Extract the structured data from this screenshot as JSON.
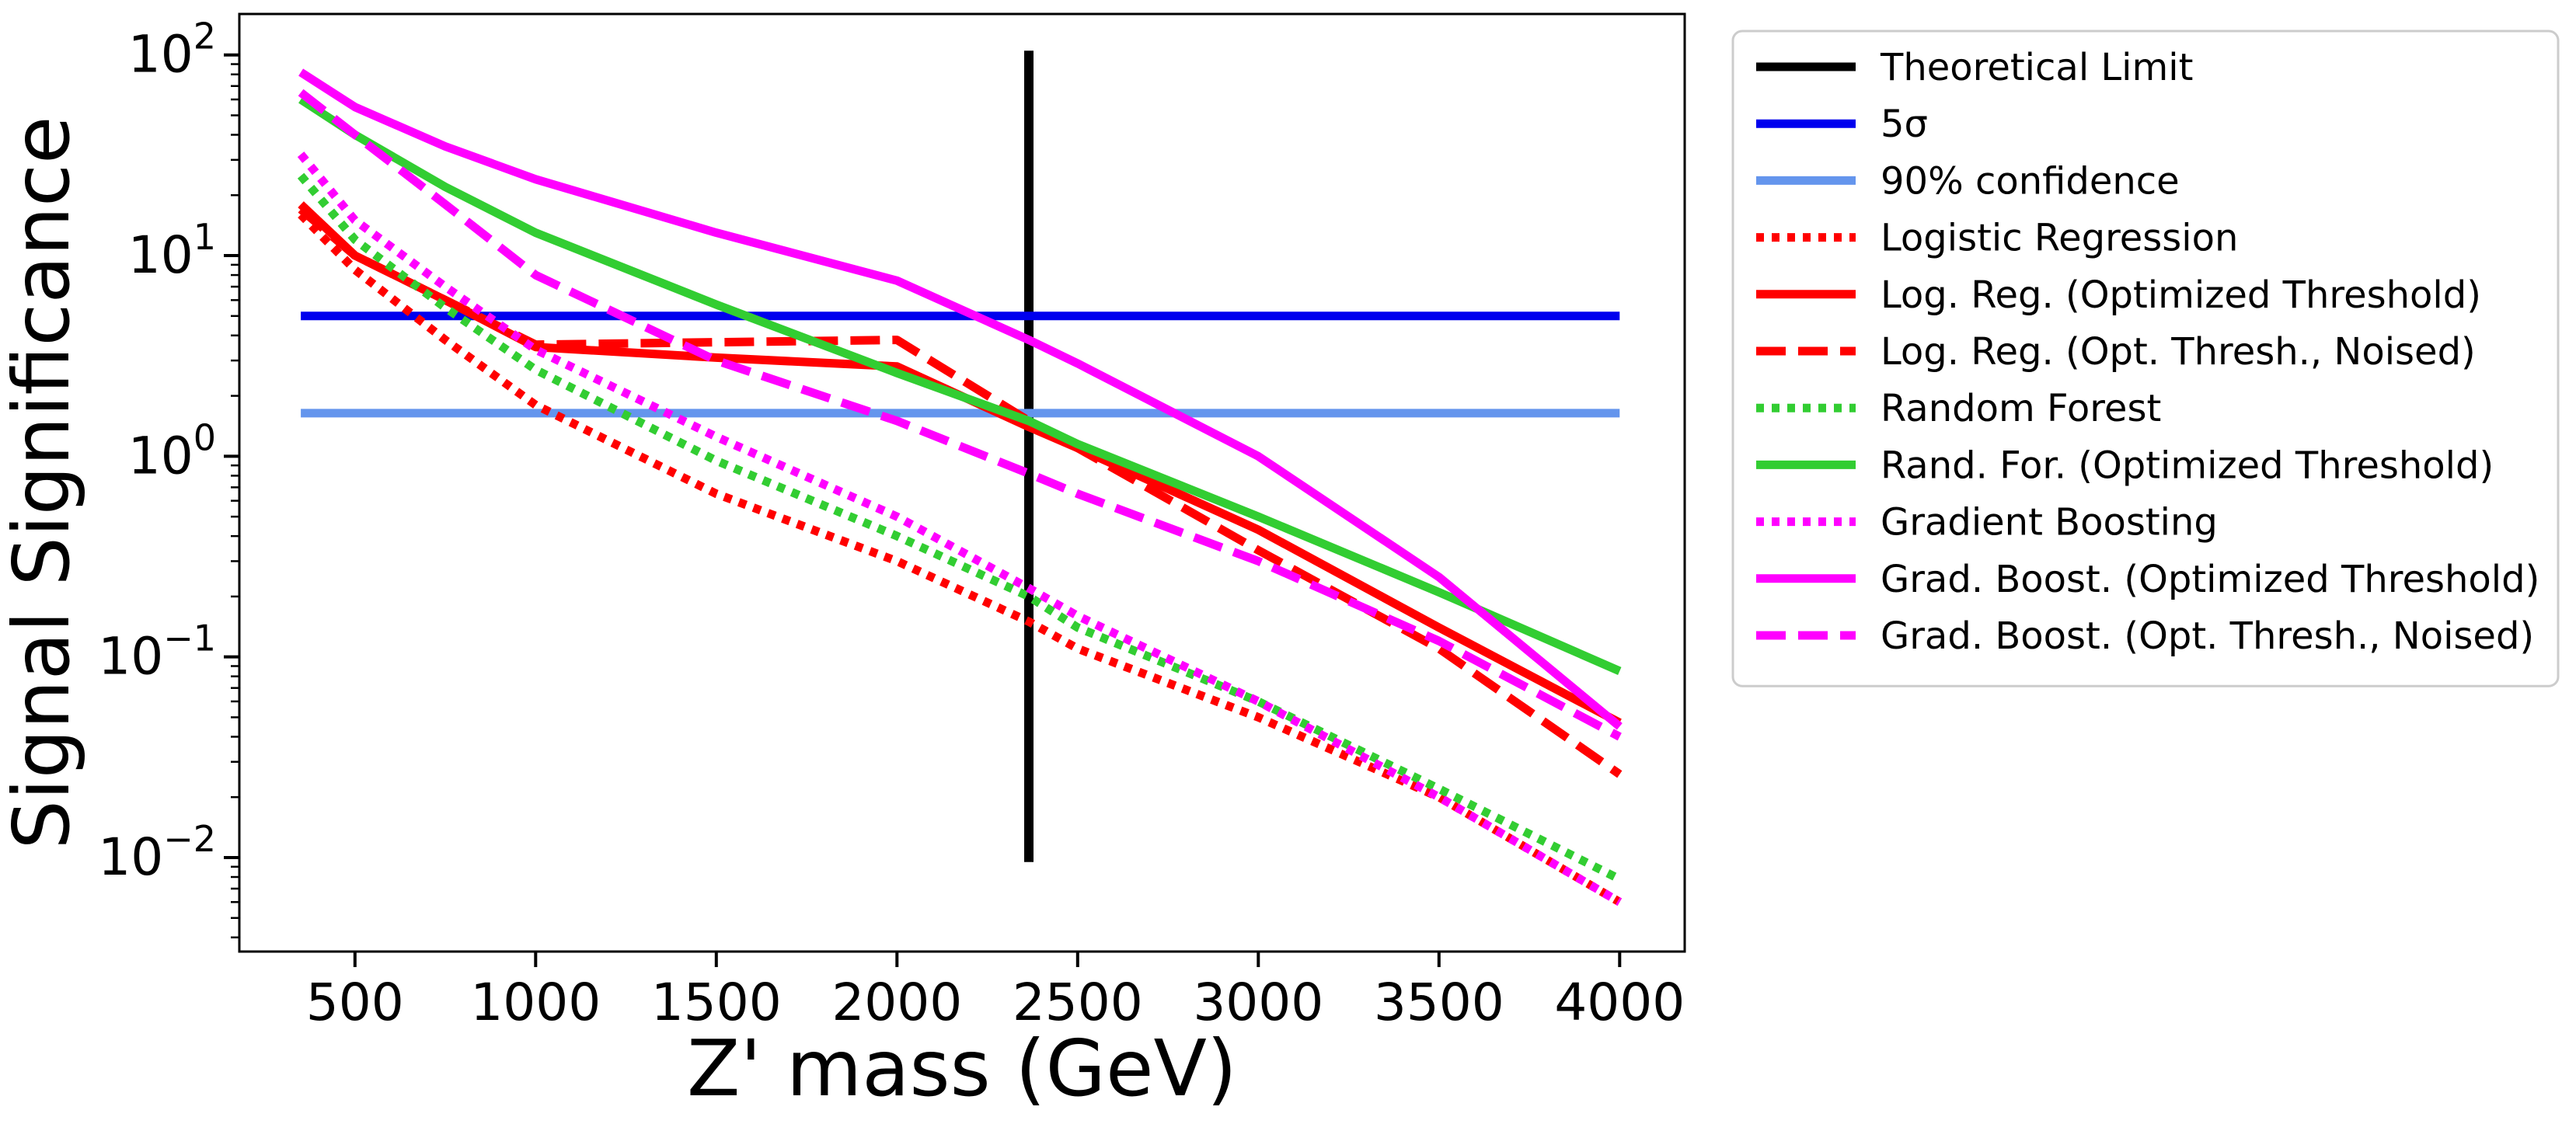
{
  "chart_data": {
    "type": "line",
    "xlabel": "Z' mass (GeV)",
    "ylabel": "Signal Significance",
    "xlim": [
      180,
      4180
    ],
    "ylim": [
      0.0034,
      160
    ],
    "yscale": "log",
    "xticks": [
      500,
      1000,
      1500,
      2000,
      2500,
      3000,
      3500,
      4000
    ],
    "yticks": [
      {
        "base": "10",
        "exp": "2",
        "value": 100
      },
      {
        "base": "10",
        "exp": "1",
        "value": 10
      },
      {
        "base": "10",
        "exp": "0",
        "value": 1
      },
      {
        "base": "10",
        "exp": "−1",
        "value": 0.1
      },
      {
        "base": "10",
        "exp": "−2",
        "value": 0.01
      }
    ],
    "grid": false,
    "legend_position": "outside-right-top",
    "series": [
      {
        "name": "Theoretical Limit",
        "color": "#000000",
        "style": "solid",
        "vertical": true,
        "points": [
          [
            2365,
            0.0095
          ],
          [
            2365,
            105
          ]
        ]
      },
      {
        "name": "5σ",
        "color": "#0000ee",
        "style": "solid",
        "points": [
          [
            350,
            5.0
          ],
          [
            4000,
            5.0
          ]
        ]
      },
      {
        "name": "90% confidence",
        "color": "#6495ed",
        "style": "solid",
        "points": [
          [
            350,
            1.64
          ],
          [
            4000,
            1.64
          ]
        ]
      },
      {
        "name": "Logistic Regression",
        "color": "#ff0000",
        "style": "dotted",
        "points": [
          [
            350,
            16
          ],
          [
            500,
            8.5
          ],
          [
            750,
            3.8
          ],
          [
            1000,
            1.8
          ],
          [
            1500,
            0.65
          ],
          [
            2000,
            0.3
          ],
          [
            2365,
            0.15
          ],
          [
            2500,
            0.11
          ],
          [
            3000,
            0.05
          ],
          [
            3500,
            0.02
          ],
          [
            4000,
            0.006
          ]
        ]
      },
      {
        "name": "Log. Reg. (Optimized Threshold)",
        "color": "#ff0000",
        "style": "solid",
        "points": [
          [
            350,
            18
          ],
          [
            500,
            10
          ],
          [
            750,
            6
          ],
          [
            1000,
            3.5
          ],
          [
            1500,
            3.1
          ],
          [
            2000,
            2.8
          ],
          [
            2365,
            1.4
          ],
          [
            2500,
            1.1
          ],
          [
            3000,
            0.43
          ],
          [
            3500,
            0.14
          ],
          [
            4000,
            0.047
          ]
        ]
      },
      {
        "name": "Log. Reg. (Opt. Thresh., Noised)",
        "color": "#ff0000",
        "style": "dashed",
        "points": [
          [
            350,
            17
          ],
          [
            500,
            10
          ],
          [
            750,
            6
          ],
          [
            1000,
            3.6
          ],
          [
            1500,
            3.7
          ],
          [
            2000,
            3.8
          ],
          [
            2365,
            1.5
          ],
          [
            2500,
            1.1
          ],
          [
            3000,
            0.34
          ],
          [
            3500,
            0.11
          ],
          [
            4000,
            0.026
          ]
        ]
      },
      {
        "name": "Random Forest",
        "color": "#32cd32",
        "style": "dotted",
        "points": [
          [
            350,
            25
          ],
          [
            500,
            12
          ],
          [
            750,
            5.5
          ],
          [
            1000,
            2.7
          ],
          [
            1500,
            0.95
          ],
          [
            2000,
            0.4
          ],
          [
            2365,
            0.2
          ],
          [
            2500,
            0.14
          ],
          [
            3000,
            0.06
          ],
          [
            3500,
            0.022
          ],
          [
            4000,
            0.0078
          ]
        ]
      },
      {
        "name": "Rand. For. (Optimized Threshold)",
        "color": "#32cd32",
        "style": "solid",
        "points": [
          [
            350,
            60
          ],
          [
            500,
            40
          ],
          [
            750,
            22
          ],
          [
            1000,
            13
          ],
          [
            1500,
            5.7
          ],
          [
            2000,
            2.6
          ],
          [
            2365,
            1.5
          ],
          [
            2500,
            1.15
          ],
          [
            3000,
            0.5
          ],
          [
            3500,
            0.21
          ],
          [
            4000,
            0.085
          ]
        ]
      },
      {
        "name": "Gradient Boosting",
        "color": "#ff00ff",
        "style": "dotted",
        "points": [
          [
            350,
            32
          ],
          [
            500,
            15
          ],
          [
            750,
            7
          ],
          [
            1000,
            3.4
          ],
          [
            1500,
            1.25
          ],
          [
            2000,
            0.5
          ],
          [
            2365,
            0.22
          ],
          [
            2500,
            0.16
          ],
          [
            3000,
            0.06
          ],
          [
            3500,
            0.02
          ],
          [
            4000,
            0.006
          ]
        ]
      },
      {
        "name": "Grad. Boost. (Optimized Threshold)",
        "color": "#ff00ff",
        "style": "solid",
        "points": [
          [
            350,
            82
          ],
          [
            500,
            55
          ],
          [
            750,
            35
          ],
          [
            1000,
            24
          ],
          [
            1500,
            13
          ],
          [
            2000,
            7.5
          ],
          [
            2365,
            3.8
          ],
          [
            2500,
            2.9
          ],
          [
            3000,
            1.0
          ],
          [
            3500,
            0.25
          ],
          [
            4000,
            0.045
          ]
        ]
      },
      {
        "name": "Grad. Boost. (Opt. Thresh., Noised)",
        "color": "#ff00ff",
        "style": "dashed",
        "points": [
          [
            350,
            65
          ],
          [
            500,
            40
          ],
          [
            750,
            18
          ],
          [
            1000,
            8
          ],
          [
            1500,
            3.0
          ],
          [
            2000,
            1.5
          ],
          [
            2365,
            0.82
          ],
          [
            2500,
            0.65
          ],
          [
            3000,
            0.3
          ],
          [
            3500,
            0.12
          ],
          [
            4000,
            0.04
          ]
        ]
      }
    ]
  }
}
